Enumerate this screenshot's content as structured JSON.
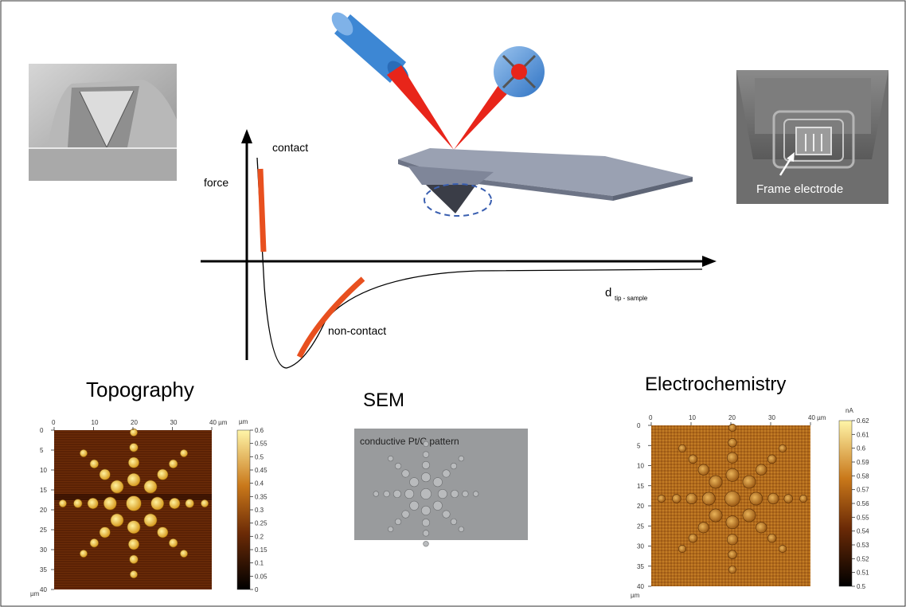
{
  "curve": {
    "y_label": "force",
    "x_label_main": "d",
    "x_label_sub": "tip - sample",
    "contact_label": "contact",
    "noncontact_label": "non-contact"
  },
  "sem_inset": {
    "annotation": "Frame electrode"
  },
  "panels": {
    "topography": {
      "title": "Topography",
      "x_ticks": [
        "0",
        "10",
        "20",
        "30",
        "40 µm"
      ],
      "y_ticks": [
        "0",
        "5",
        "10",
        "15",
        "20",
        "25",
        "30",
        "35",
        "40"
      ],
      "axis_unit": "µm",
      "colorbar_unit": "µm",
      "colorbar_ticks": [
        "0.6",
        "0.55",
        "0.5",
        "0.45",
        "0.4",
        "0.35",
        "0.3",
        "0.25",
        "0.2",
        "0.15",
        "0.1",
        "0.05",
        "0"
      ]
    },
    "sem": {
      "title": "SEM",
      "caption": "conductive Pt/C pattern"
    },
    "electrochemistry": {
      "title": "Electrochemistry",
      "x_ticks": [
        "0",
        "10",
        "20",
        "30",
        "40 µm"
      ],
      "y_ticks": [
        "0",
        "5",
        "10",
        "15",
        "20",
        "25",
        "30",
        "35",
        "40"
      ],
      "axis_unit": "µm",
      "colorbar_unit": "nA",
      "colorbar_ticks": [
        "0.62",
        "0.61",
        "0.6",
        "0.59",
        "0.58",
        "0.57",
        "0.56",
        "0.55",
        "0.54",
        "0.53",
        "0.52",
        "0.51",
        "0.5"
      ]
    }
  },
  "colors": {
    "laser": "#e8251a",
    "highlight": "#e8501f",
    "cantilever": "#8e95a6",
    "laser_body": "#3d87d4",
    "dashed_circle": "#3a5fb0"
  }
}
